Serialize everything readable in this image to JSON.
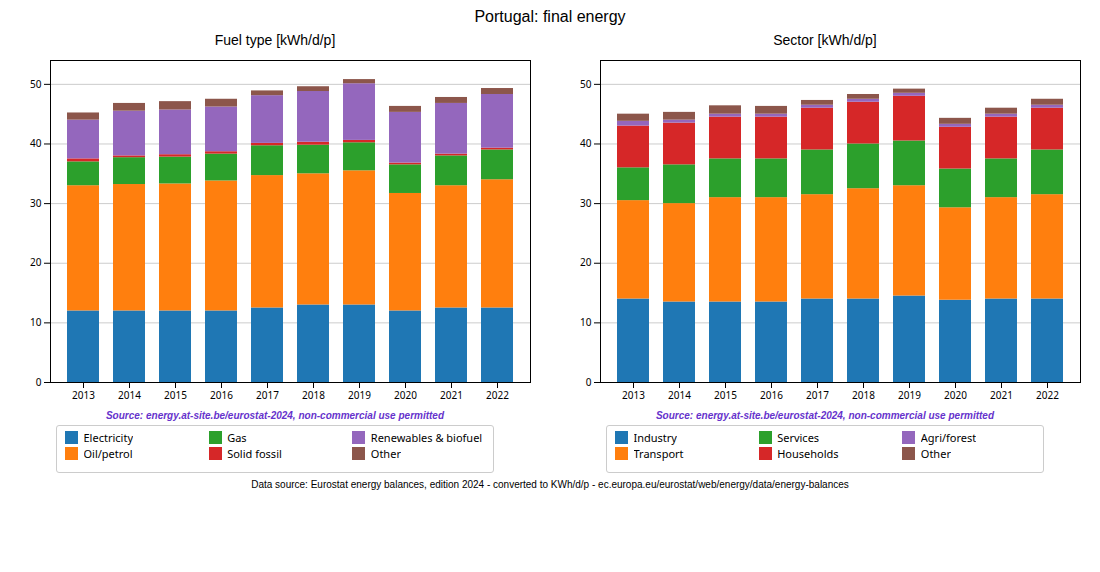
{
  "title": "Portugal: final energy",
  "annotations": [
    "Data source: Eurostat energy balances, edition 2024 - converted to KWh/d/p - ec.europa.eu/eurostat/web/energy/data/energy-balances"
  ],
  "chart_data": [
    {
      "type": "bar",
      "title": "Fuel type [kWh/d/p]",
      "stacked": true,
      "grid": true,
      "legend": "bottom",
      "categories": [
        "2013",
        "2014",
        "2015",
        "2016",
        "2017",
        "2018",
        "2019",
        "2020",
        "2021",
        "2022"
      ],
      "series": [
        {
          "name": "Electricity",
          "color": "#1f77b4",
          "values": [
            12.0,
            12.0,
            12.0,
            12.0,
            12.5,
            13.0,
            13.0,
            12.0,
            12.5,
            12.5
          ]
        },
        {
          "name": "Oil/petrol",
          "color": "#ff7f0e",
          "values": [
            21.0,
            21.2,
            21.3,
            21.8,
            22.2,
            22.0,
            22.5,
            19.7,
            20.5,
            21.5
          ]
        },
        {
          "name": "Gas",
          "color": "#2ca02c",
          "values": [
            4.0,
            4.5,
            4.5,
            4.5,
            5.0,
            4.8,
            4.7,
            4.8,
            5.0,
            5.0
          ]
        },
        {
          "name": "Solid fossil",
          "color": "#d62728",
          "values": [
            0.5,
            0.3,
            0.4,
            0.4,
            0.4,
            0.5,
            0.4,
            0.3,
            0.3,
            0.3
          ]
        },
        {
          "name": "Renewables & biofuel",
          "color": "#9467bd",
          "values": [
            6.5,
            7.5,
            7.5,
            7.5,
            8.0,
            8.5,
            9.5,
            8.5,
            8.5,
            9.0
          ]
        },
        {
          "name": "Other",
          "color": "#8c564b",
          "values": [
            1.2,
            1.3,
            1.4,
            1.3,
            0.8,
            0.8,
            0.7,
            1.0,
            1.0,
            1.0
          ]
        }
      ],
      "ylim": [
        0,
        54
      ],
      "yticks": [
        0,
        10,
        20,
        30,
        40,
        50
      ],
      "annotations": [
        {
          "text": "Source: energy.at-site.be/eurostat-2024, non-commercial use permitted",
          "color": "#6633cc"
        }
      ]
    },
    {
      "type": "bar",
      "title": "Sector [kWh/d/p]",
      "stacked": true,
      "grid": true,
      "legend": "bottom",
      "categories": [
        "2013",
        "2014",
        "2015",
        "2016",
        "2017",
        "2018",
        "2019",
        "2020",
        "2021",
        "2022"
      ],
      "series": [
        {
          "name": "Industry",
          "color": "#1f77b4",
          "values": [
            14.0,
            13.5,
            13.5,
            13.5,
            14.0,
            14.0,
            14.5,
            13.8,
            14.0,
            14.0
          ]
        },
        {
          "name": "Transport",
          "color": "#ff7f0e",
          "values": [
            16.5,
            16.5,
            17.5,
            17.5,
            17.5,
            18.5,
            18.5,
            15.5,
            17.0,
            17.5
          ]
        },
        {
          "name": "Services",
          "color": "#2ca02c",
          "values": [
            5.5,
            6.5,
            6.5,
            6.5,
            7.5,
            7.5,
            7.5,
            6.5,
            6.5,
            7.5
          ]
        },
        {
          "name": "Households",
          "color": "#d62728",
          "values": [
            7.0,
            7.0,
            7.0,
            7.0,
            7.0,
            7.0,
            7.5,
            7.0,
            7.0,
            7.0
          ]
        },
        {
          "name": "Agri/forest",
          "color": "#9467bd",
          "values": [
            0.8,
            0.5,
            0.5,
            0.5,
            0.5,
            0.5,
            0.5,
            0.5,
            0.5,
            0.5
          ]
        },
        {
          "name": "Other",
          "color": "#8c564b",
          "values": [
            1.2,
            1.3,
            1.4,
            1.3,
            0.8,
            0.8,
            0.7,
            1.0,
            1.0,
            1.0
          ]
        }
      ],
      "ylim": [
        0,
        54
      ],
      "yticks": [
        0,
        10,
        20,
        30,
        40,
        50
      ],
      "annotations": [
        {
          "text": "Source: energy.at-site.be/eurostat-2024, non-commercial use permitted",
          "color": "#6633cc"
        }
      ]
    }
  ]
}
